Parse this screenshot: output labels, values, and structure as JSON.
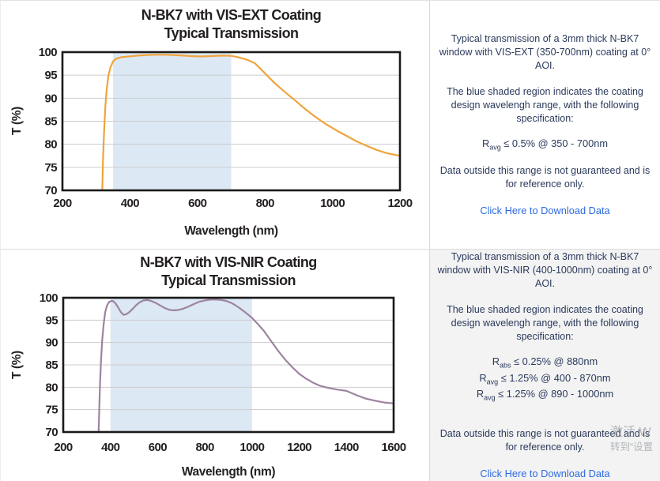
{
  "chart_data": [
    {
      "type": "line",
      "title_line1": "N-BK7 with VIS-EXT Coating",
      "title_line2": "Typical Transmission",
      "xlabel": "Wavelength (nm)",
      "ylabel": "T (%)",
      "xlim": [
        200,
        1200
      ],
      "ylim": [
        70,
        100
      ],
      "xticks": [
        200,
        400,
        600,
        800,
        1000,
        1200
      ],
      "yticks": [
        70,
        75,
        80,
        85,
        90,
        95,
        100
      ],
      "grid": true,
      "legend": "none",
      "line_color": "#F0A43C",
      "band_nm": [
        350,
        700
      ],
      "band_color": "#DCE8F4",
      "series": [
        {
          "name": "VIS-EXT coated N-BK7 transmission",
          "x": [
            318,
            320,
            323,
            327,
            331,
            336,
            342,
            350,
            360,
            375,
            400,
            430,
            460,
            490,
            520,
            550,
            580,
            610,
            640,
            670,
            700,
            720,
            745,
            770,
            800,
            830,
            860,
            890,
            920,
            950,
            980,
            1010,
            1040,
            1070,
            1100,
            1130,
            1160,
            1200
          ],
          "y": [
            70,
            76,
            82,
            88,
            91.8,
            94.8,
            96.6,
            98.0,
            98.6,
            98.9,
            99.1,
            99.3,
            99.4,
            99.45,
            99.4,
            99.3,
            99.15,
            99.05,
            99.15,
            99.25,
            99.2,
            98.9,
            98.4,
            97.6,
            95.4,
            93.2,
            91.3,
            89.5,
            87.6,
            85.9,
            84.4,
            83.1,
            81.9,
            80.7,
            79.7,
            78.8,
            78.1,
            77.5
          ]
        }
      ]
    },
    {
      "type": "line",
      "title_line1": "N-BK7 with VIS-NIR Coating",
      "title_line2": "Typical Transmission",
      "xlabel": "Wavelength (nm)",
      "ylabel": "T (%)",
      "xlim": [
        200,
        1600
      ],
      "ylim": [
        70,
        100
      ],
      "xticks": [
        200,
        400,
        600,
        800,
        1000,
        1200,
        1400,
        1600
      ],
      "yticks": [
        70,
        75,
        80,
        85,
        90,
        95,
        100
      ],
      "grid": true,
      "legend": "none",
      "line_color": "#9D84A0",
      "band_nm": [
        400,
        1000
      ],
      "band_color": "#DCE8F4",
      "series": [
        {
          "name": "VIS-NIR coated N-BK7 transmission",
          "x": [
            350,
            353,
            356,
            360,
            365,
            371,
            378,
            386,
            395,
            405,
            413,
            422,
            433,
            444,
            455,
            466,
            478,
            492,
            508,
            524,
            540,
            556,
            572,
            590,
            610,
            630,
            650,
            668,
            685,
            705,
            725,
            750,
            775,
            800,
            825,
            850,
            870,
            890,
            910,
            930,
            950,
            975,
            1000,
            1025,
            1050,
            1080,
            1110,
            1140,
            1170,
            1200,
            1230,
            1260,
            1290,
            1320,
            1360,
            1400,
            1440,
            1480,
            1520,
            1560,
            1600
          ],
          "y": [
            70,
            76,
            81,
            86,
            90.5,
            94,
            96.8,
            98.3,
            99.1,
            99.3,
            99.2,
            98.7,
            97.8,
            96.8,
            96.2,
            96.3,
            96.7,
            97.4,
            98.3,
            99.0,
            99.4,
            99.5,
            99.3,
            98.9,
            98.3,
            97.7,
            97.3,
            97.2,
            97.25,
            97.5,
            97.9,
            98.5,
            99.1,
            99.4,
            99.6,
            99.6,
            99.5,
            99.3,
            98.9,
            98.3,
            97.6,
            96.6,
            95.5,
            94.1,
            92.6,
            90.4,
            88.2,
            86.2,
            84.5,
            83.0,
            81.9,
            81.0,
            80.3,
            79.9,
            79.5,
            79.2,
            78.3,
            77.5,
            77.0,
            76.6,
            76.4
          ]
        }
      ]
    }
  ],
  "panels": [
    {
      "para1_lines": [
        "Typical transmission of a 3mm thick N-BK7",
        "window with VIS-EXT (350-700nm) coating at 0°",
        "AOI."
      ],
      "para2_lines": [
        "The blue shaded region indicates the coating",
        "design wavelengh range, with the following",
        "specification:"
      ],
      "specs": [
        {
          "base": "R",
          "sub": "avg",
          "rest": " ≤ 0.5% @ 350 - 700nm"
        }
      ],
      "para3_lines": [
        "Data outside this range is not guaranteed and is",
        "for reference only."
      ],
      "link_label": "Click Here to Download Data"
    },
    {
      "para1_lines": [
        "Typical transmission of a 3mm thick N-BK7",
        "window with VIS-NIR (400-1000nm) coating at 0°",
        "AOI."
      ],
      "para2_lines": [
        "The blue shaded region indicates the coating",
        "design wavelengh range, with the following",
        "specification:"
      ],
      "specs": [
        {
          "base": "R",
          "sub": "abs",
          "rest": " ≤ 0.25% @ 880nm"
        },
        {
          "base": "R",
          "sub": "avg",
          "rest": " ≤ 1.25% @ 400 - 870nm"
        },
        {
          "base": "R",
          "sub": "avg",
          "rest": " ≤ 1.25% @ 890 - 1000nm"
        }
      ],
      "para3_lines": [
        "Data outside this range is not guaranteed and is",
        "for reference only."
      ],
      "link_label": "Click Here to Download Data"
    }
  ],
  "watermark": {
    "line1": "激活 W",
    "line2": "转到“设置"
  },
  "colors": {
    "chart_text": "#231F20",
    "grid": "#CDCDCD",
    "frame": "#1A1A1A",
    "body_text": "#2B3A5C",
    "link": "#2D6BDF",
    "row2_bg": "#F3F3F3"
  }
}
